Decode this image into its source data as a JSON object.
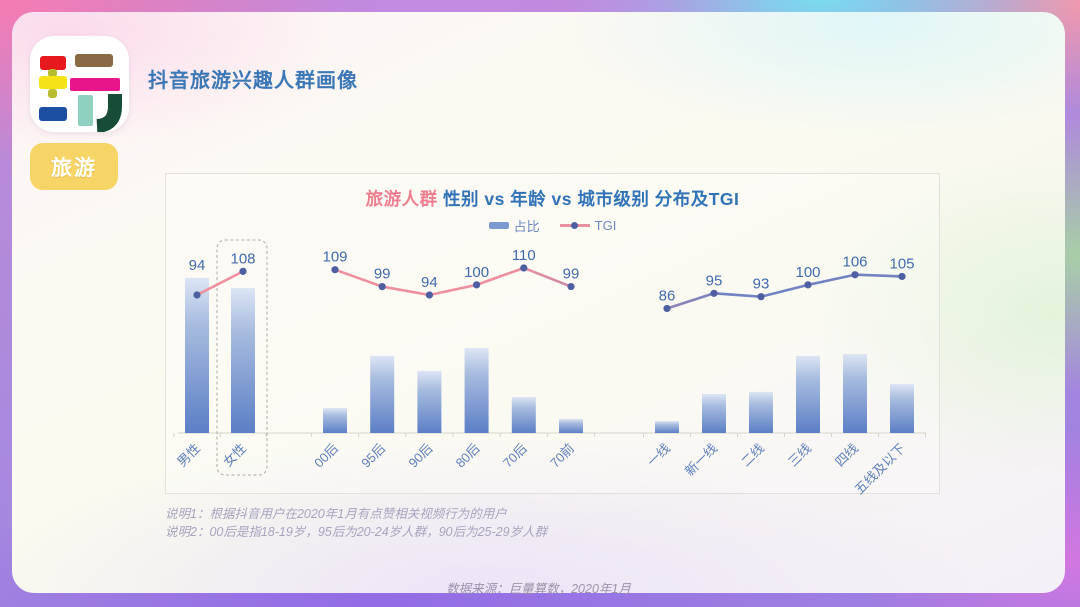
{
  "header": {
    "title": "抖音旅游兴趣人群画像",
    "badge": "旅游",
    "logo_glyph": "玩"
  },
  "chart": {
    "title_highlight": "旅游人群",
    "title_rest": " 性别 vs 年龄 vs 城市级别 分布及TGI",
    "legend": {
      "bar_label": "占比",
      "line_label": "TGI"
    },
    "highlighted_category": "女性"
  },
  "chart_data": {
    "type": "bar+line",
    "bar_series": "占比",
    "line_series": "TGI",
    "note": "占比 values estimated from bar heights; each group sums to 100%",
    "groups": [
      {
        "name": "性别",
        "categories": [
          "男性",
          "女性"
        ],
        "share_pct": [
          51.7,
          48.3
        ],
        "tgi": [
          94,
          108
        ]
      },
      {
        "name": "年龄",
        "categories": [
          "00后",
          "95后",
          "90后",
          "80后",
          "70后",
          "70前"
        ],
        "share_pct": [
          8.3,
          25.7,
          20.7,
          28.3,
          12.0,
          4.7
        ],
        "tgi": [
          109,
          99,
          94,
          100,
          110,
          99
        ]
      },
      {
        "name": "城市级别",
        "categories": [
          "一线",
          "新一线",
          "二线",
          "三线",
          "四线",
          "五线及以下"
        ],
        "share_pct": [
          4.0,
          13.0,
          13.7,
          25.7,
          26.3,
          16.3
        ],
        "tgi": [
          86,
          95,
          93,
          100,
          106,
          105
        ]
      }
    ]
  },
  "notes": [
    "说明1：根据抖音用户在2020年1月有点赞相关视频行为的用户",
    "说明2：00后是指18-19岁，95后为20-24岁人群，90后为25-29岁人群"
  ],
  "source": "数据来源：巨量算数，2020年1月",
  "colors": {
    "accent_pink": "#ef7e8e",
    "accent_blue": "#3273b7",
    "header_blue": "#3c77b6",
    "badge_yellow": "#f7d466",
    "bar_top": "#dce5f4",
    "bar_mid": "#a8bcdf",
    "bar_bottom": "#5b7fc6",
    "line_start": "#ef8f9e",
    "line_mid": "#b083ae",
    "line_end": "#7382c2",
    "dot": "#4d5fa0",
    "value_label": "#416aad",
    "axis_label": "#5e7fbc",
    "axis_line": "#d5d5cc"
  }
}
